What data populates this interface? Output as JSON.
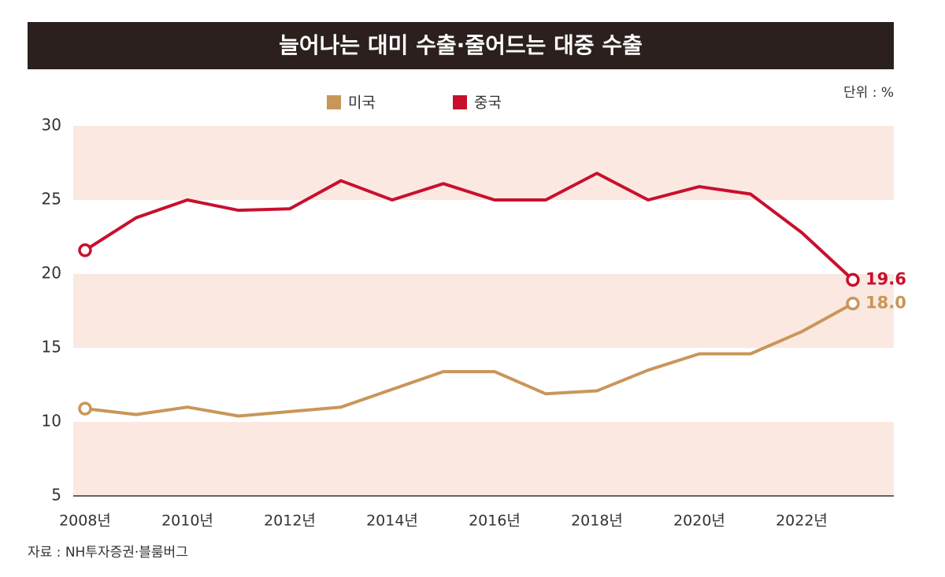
{
  "chart_data": {
    "type": "line",
    "title": "늘어나는 대미 수출·줄어드는 대중 수출",
    "unit": "단위 : %",
    "source": "자료 : NH투자증권·블룸버그",
    "categories": [
      "2008년",
      null,
      "2010년",
      null,
      "2012년",
      null,
      "2014년",
      null,
      "2016년",
      null,
      "2018년",
      null,
      "2020년",
      null,
      "2022년",
      null
    ],
    "series": [
      {
        "name": "미국",
        "color": "#c9965a",
        "values": [
          10.9,
          10.5,
          11.0,
          10.4,
          10.7,
          11.0,
          12.2,
          13.4,
          13.4,
          11.9,
          12.1,
          13.5,
          14.6,
          14.6,
          16.1,
          18.0
        ],
        "value_labels": [
          null,
          null,
          null,
          null,
          null,
          null,
          null,
          null,
          null,
          null,
          null,
          null,
          null,
          null,
          null,
          "18.0"
        ]
      },
      {
        "name": "중국",
        "color": "#c8102e",
        "values": [
          21.6,
          23.8,
          25.0,
          24.3,
          24.4,
          26.3,
          25.0,
          26.1,
          25.0,
          25.0,
          26.8,
          25.0,
          25.9,
          25.4,
          22.8,
          19.6
        ],
        "value_labels": [
          null,
          null,
          null,
          null,
          null,
          null,
          null,
          null,
          null,
          null,
          null,
          null,
          null,
          null,
          null,
          "19.6"
        ]
      }
    ],
    "ylim": [
      5,
      30
    ],
    "yticks": [
      5,
      10,
      15,
      20,
      25,
      30
    ],
    "band_color": "#fbe9e1"
  }
}
